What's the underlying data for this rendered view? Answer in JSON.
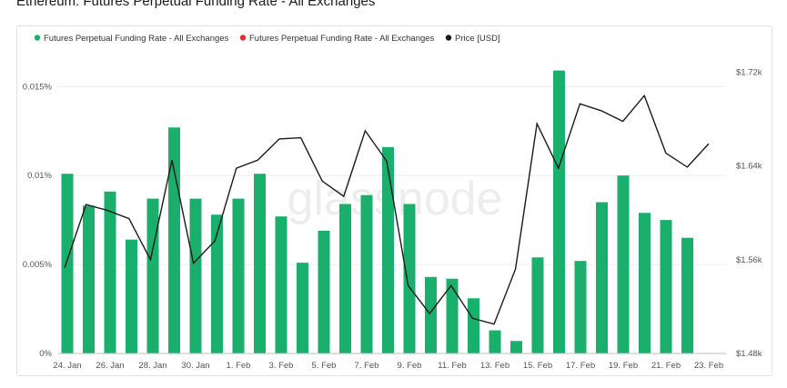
{
  "header": {
    "title": "Ethereum: Futures Perpetual Funding Rate - All Exchanges"
  },
  "watermark": "glassnode",
  "colors": {
    "bar": "#1aaf6c",
    "negative": "#e03131",
    "price": "#1a1a1a",
    "grid": "#ececec"
  },
  "chart_data": {
    "type": "bar",
    "title": "Ethereum: Futures Perpetual Funding Rate - All Exchanges",
    "legend": [
      {
        "name": "Futures Perpetual Funding Rate - All Exchanges",
        "color": "#1aaf6c"
      },
      {
        "name": "Futures Perpetual Funding Rate - All Exchanges",
        "color": "#e03131"
      },
      {
        "name": "Price [USD]",
        "color": "#1a1a1a"
      }
    ],
    "legend_position": "top-left",
    "grid": true,
    "x_ticks": [
      "24. Jan",
      "26. Jan",
      "28. Jan",
      "30. Jan",
      "1. Feb",
      "3. Feb",
      "5. Feb",
      "7. Feb",
      "9. Feb",
      "11. Feb",
      "13. Feb",
      "15. Feb",
      "17. Feb",
      "19. Feb",
      "21. Feb",
      "23. Feb"
    ],
    "y_left": {
      "ticks": [
        "0%",
        "0.005%",
        "0.01%",
        "0.015%"
      ],
      "values": [
        0,
        0.005,
        0.01,
        0.015
      ],
      "range": [
        0,
        0.0168
      ]
    },
    "y_right": {
      "ticks": [
        "$1.48k",
        "$1.56k",
        "$1.64k",
        "$1.72k"
      ],
      "values": [
        1480,
        1560,
        1640,
        1720
      ],
      "range": [
        1480,
        1735
      ]
    },
    "funding_rate": [
      0.0101,
      0.0083,
      0.0091,
      0.0064,
      0.0087,
      0.0127,
      0.0087,
      0.0078,
      0.0087,
      0.0101,
      0.0077,
      0.0051,
      0.0069,
      0.0084,
      0.0089,
      0.0116,
      0.0084,
      0.0043,
      0.0042,
      0.0031,
      0.0013,
      0.0007,
      0.0054,
      0.0159,
      0.0052,
      0.0085,
      0.01,
      0.0079,
      0.0075,
      0.0065
    ],
    "price": [
      1553,
      1607,
      1602,
      1595,
      1560,
      1645,
      1557,
      1576,
      1638,
      1645,
      1663,
      1664,
      1627,
      1614,
      1670,
      1644,
      1538,
      1514,
      1538,
      1510,
      1505,
      1552,
      1676,
      1638,
      1693,
      1687,
      1678,
      1700,
      1651,
      1639,
      1659
    ]
  }
}
